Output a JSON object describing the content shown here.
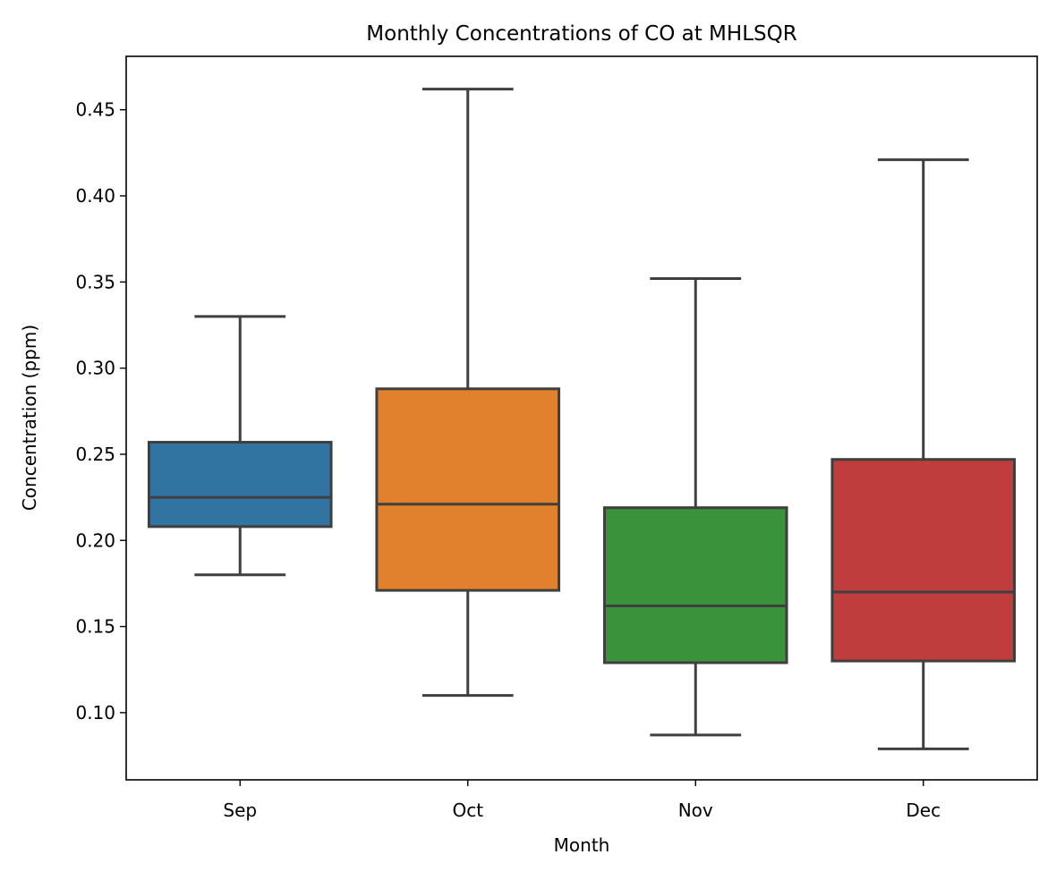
{
  "chart_data": {
    "type": "box",
    "title": "Monthly Concentrations of CO at MHLSQR",
    "xlabel": "Month",
    "ylabel": "Concentration (ppm)",
    "ylim": [
      0.061,
      0.481
    ],
    "yticks": [
      0.1,
      0.15,
      0.2,
      0.25,
      0.3,
      0.35,
      0.4,
      0.45
    ],
    "ytick_labels": [
      "0.10",
      "0.15",
      "0.20",
      "0.25",
      "0.30",
      "0.35",
      "0.40",
      "0.45"
    ],
    "grid": false,
    "legend": "none",
    "categories": [
      "Sep",
      "Oct",
      "Nov",
      "Dec"
    ],
    "boxes": [
      {
        "category": "Sep",
        "whisker_low": 0.18,
        "q1": 0.208,
        "median": 0.225,
        "q3": 0.257,
        "whisker_high": 0.33,
        "color": "#3274a1"
      },
      {
        "category": "Oct",
        "whisker_low": 0.11,
        "q1": 0.171,
        "median": 0.221,
        "q3": 0.288,
        "whisker_high": 0.462,
        "color": "#e1812c"
      },
      {
        "category": "Nov",
        "whisker_low": 0.087,
        "q1": 0.129,
        "median": 0.162,
        "q3": 0.219,
        "whisker_high": 0.352,
        "color": "#3a923a"
      },
      {
        "category": "Dec",
        "whisker_low": 0.079,
        "q1": 0.13,
        "median": 0.17,
        "q3": 0.247,
        "whisker_high": 0.421,
        "color": "#c03d3e"
      }
    ],
    "line_color": "#3f3f3f"
  }
}
